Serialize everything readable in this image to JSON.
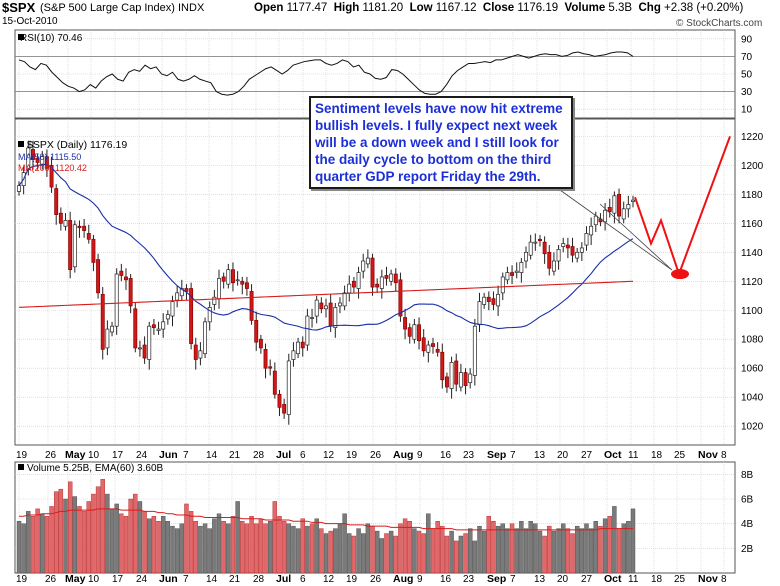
{
  "header": {
    "symbol": "$SPX",
    "name": "(S&P 500 Large Cap Index) INDX",
    "date": "15-Oct-2010",
    "open_label": "Open",
    "open": "1177.47",
    "high_label": "High",
    "high": "1181.20",
    "low_label": "Low",
    "low": "1167.12",
    "close_label": "Close",
    "close": "1176.19",
    "volume_label": "Volume",
    "volume": "5.3B",
    "chg_label": "Chg",
    "chg": "+2.38 (+0.20%)",
    "watermark": "© StockCharts.com"
  },
  "callout": {
    "text": "Sentiment levels have now hit extreme bullish levels. I fully expect next week will be a down week and I still look for the daily cycle to bottom on the third quarter GDP report Friday the 29th."
  },
  "chart_data": [
    {
      "type": "line",
      "panel": "rsi",
      "legend": "RSI(10) 70.46",
      "ylim": [
        0,
        100
      ],
      "y_ticks": [
        10,
        30,
        50,
        70,
        90
      ],
      "reference_lines": [
        30,
        70
      ],
      "values": [
        66,
        64,
        58,
        55,
        62,
        60,
        52,
        46,
        40,
        36,
        34,
        30,
        32,
        38,
        34,
        42,
        47,
        50,
        44,
        42,
        52,
        55,
        53,
        60,
        56,
        58,
        50,
        48,
        52,
        44,
        42,
        44,
        48,
        44,
        42,
        40,
        30,
        27,
        26,
        27,
        30,
        36,
        44,
        48,
        52,
        56,
        58,
        54,
        50,
        54,
        60,
        62,
        64,
        65,
        66,
        66,
        62,
        60,
        62,
        66,
        64,
        58,
        60,
        52,
        50,
        45,
        44,
        46,
        55,
        54,
        50,
        44,
        38,
        32,
        28,
        27,
        27,
        30,
        38,
        48,
        54,
        58,
        62,
        62,
        63,
        64,
        63,
        66,
        66,
        68,
        70,
        72,
        70,
        68,
        70,
        72,
        73,
        72,
        72,
        70,
        71,
        74,
        75,
        73,
        72,
        70,
        71,
        72,
        74,
        75,
        75,
        74,
        70
      ]
    },
    {
      "type": "candlestick",
      "panel": "price",
      "legend": "$SPX (Daily) 1176.19",
      "overlays": [
        {
          "name": "MA(50) 1115.50",
          "color": "#1a2ea8"
        },
        {
          "name": "MA(200) 1120.42",
          "color": "#d81b1b"
        }
      ],
      "ylim": [
        1007,
        1232
      ],
      "y_ticks": [
        1020,
        1040,
        1060,
        1080,
        1100,
        1120,
        1140,
        1160,
        1180,
        1200,
        1220
      ],
      "x_tick_labels": [
        "19",
        "26",
        "May",
        "10",
        "17",
        "24",
        "Jun",
        "7",
        "14",
        "21",
        "28",
        "Jul",
        "6",
        "12",
        "19",
        "26",
        "Aug",
        "9",
        "16",
        "23",
        "Sep",
        "7",
        "13",
        "20",
        "27",
        "Oct",
        "11",
        "18",
        "25",
        "Nov",
        "8"
      ],
      "close": [
        1186,
        1195,
        1212,
        1204,
        1202,
        1206,
        1198,
        1185,
        1166,
        1160,
        1162,
        1128,
        1159,
        1157,
        1155,
        1149,
        1133,
        1112,
        1073,
        1087,
        1089,
        1125,
        1124,
        1121,
        1103,
        1074,
        1074,
        1067,
        1089,
        1088,
        1087,
        1092,
        1097,
        1106,
        1112,
        1115,
        1113,
        1077,
        1066,
        1072,
        1092,
        1102,
        1109,
        1122,
        1120,
        1128,
        1119,
        1121,
        1118,
        1115,
        1093,
        1078,
        1074,
        1060,
        1060,
        1042,
        1033,
        1029,
        1065,
        1072,
        1078,
        1074,
        1096,
        1095,
        1107,
        1101,
        1103,
        1089,
        1102,
        1105,
        1112,
        1118,
        1116,
        1126,
        1134,
        1136,
        1116,
        1116,
        1123,
        1122,
        1125,
        1119,
        1096,
        1087,
        1082,
        1090,
        1079,
        1072,
        1076,
        1075,
        1071,
        1052,
        1047,
        1064,
        1049,
        1057,
        1048,
        1056,
        1089,
        1106,
        1109,
        1106,
        1104,
        1111,
        1123,
        1126,
        1124,
        1127,
        1133,
        1140,
        1147,
        1147,
        1148,
        1139,
        1129,
        1134,
        1142,
        1146,
        1143,
        1138,
        1140,
        1143,
        1153,
        1158,
        1165,
        1161,
        1169,
        1168,
        1179,
        1165,
        1170,
        1173,
        1176
      ],
      "annotation_projection": [
        1178,
        1146,
        1162,
        1125,
        1220
      ],
      "annotation_projection_color": "#ee1111"
    },
    {
      "type": "bar",
      "panel": "volume",
      "legend": "Volume 5.25B, EMA(60) 3.60B",
      "ylim_billions": [
        0,
        9
      ],
      "y_ticks": [
        "2B",
        "4B",
        "6B",
        "8B"
      ],
      "values": [
        4.2,
        4.0,
        5.0,
        4.6,
        5.2,
        4.8,
        4.6,
        5.4,
        6.6,
        6.8,
        6.0,
        7.4,
        6.2,
        5.4,
        5.0,
        5.8,
        6.4,
        7.0,
        7.6,
        6.4,
        5.2,
        5.6,
        4.8,
        4.6,
        6.0,
        6.4,
        5.8,
        5.0,
        4.4,
        4.6,
        4.2,
        4.6,
        4.2,
        3.8,
        3.6,
        4.0,
        5.6,
        5.0,
        4.2,
        3.8,
        4.0,
        3.6,
        4.4,
        4.8,
        4.2,
        4.0,
        4.6,
        5.8,
        4.2,
        4.0,
        4.6,
        4.0,
        4.4,
        4.0,
        4.2,
        5.8,
        4.6,
        4.2,
        4.0,
        3.8,
        3.6,
        4.4,
        3.8,
        4.0,
        4.4,
        3.6,
        3.2,
        3.4,
        3.6,
        4.0,
        4.8,
        3.2,
        3.0,
        3.6,
        3.2,
        4.0,
        3.8,
        3.4,
        2.8,
        3.2,
        3.4,
        3.0,
        4.0,
        4.4,
        4.2,
        3.6,
        3.4,
        3.2,
        4.8,
        3.6,
        4.2,
        3.8,
        3.0,
        3.4,
        2.6,
        3.0,
        3.2,
        3.6,
        2.6,
        3.8,
        3.4,
        4.6,
        4.2,
        3.8,
        4.0,
        3.6,
        4.0,
        3.6,
        4.2,
        3.6,
        4.2,
        4.0,
        3.4,
        3.0,
        3.8,
        3.4,
        3.6,
        4.0,
        3.6,
        3.2,
        3.8,
        3.6,
        4.0,
        3.6,
        4.2,
        3.8,
        4.4,
        4.6,
        5.4,
        3.6,
        4.0,
        4.2,
        5.2
      ],
      "ema": [
        4.6,
        4.6,
        4.7,
        4.7,
        4.7,
        4.8,
        4.8,
        4.8,
        4.9,
        5.0,
        5.0,
        5.1,
        5.1,
        5.1,
        5.1,
        5.1,
        5.1,
        5.2,
        5.2,
        5.2,
        5.2,
        5.2,
        5.1,
        5.1,
        5.1,
        5.1,
        5.1,
        5.0,
        5.0,
        5.0,
        4.9,
        4.9,
        4.8,
        4.8,
        4.7,
        4.7,
        4.7,
        4.6,
        4.6,
        4.6,
        4.5,
        4.5,
        4.5,
        4.5,
        4.5,
        4.5,
        4.5,
        4.5,
        4.4,
        4.4,
        4.4,
        4.4,
        4.4,
        4.3,
        4.3,
        4.3,
        4.3,
        4.3,
        4.3,
        4.2,
        4.2,
        4.2,
        4.2,
        4.1,
        4.1,
        4.1,
        4.0,
        4.0,
        4.0,
        4.0,
        4.0,
        3.9,
        3.9,
        3.9,
        3.9,
        3.8,
        3.8,
        3.8,
        3.8,
        3.8,
        3.7,
        3.7,
        3.7,
        3.7,
        3.7,
        3.7,
        3.7,
        3.6,
        3.6,
        3.6,
        3.6,
        3.6,
        3.6,
        3.6,
        3.5,
        3.5,
        3.5,
        3.5,
        3.5,
        3.5,
        3.5,
        3.5,
        3.5,
        3.5,
        3.5,
        3.5,
        3.5,
        3.5,
        3.5,
        3.5,
        3.5,
        3.5,
        3.5,
        3.5,
        3.5,
        3.5,
        3.5,
        3.5,
        3.5,
        3.5,
        3.5,
        3.5,
        3.5,
        3.5,
        3.5,
        3.6,
        3.6,
        3.6,
        3.6,
        3.6,
        3.6,
        3.6,
        3.6
      ]
    }
  ]
}
